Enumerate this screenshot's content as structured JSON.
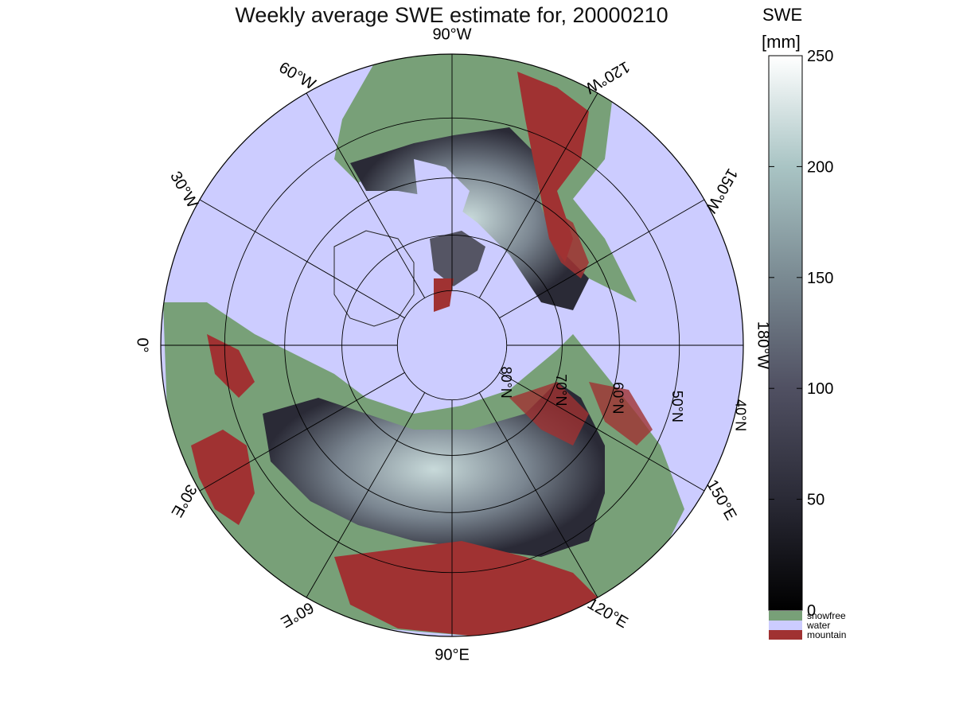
{
  "title": "Weekly average SWE estimate for, 20000210",
  "colorbar": {
    "title_line1": "SWE",
    "title_line2": "[mm]",
    "max_value": 250,
    "tick_values": [
      0,
      50,
      100,
      150,
      200,
      250
    ],
    "tick_labels": [
      "0",
      "50",
      "100",
      "150",
      "200",
      "250"
    ],
    "gradient": [
      "#000000",
      "#2a2a36",
      "#505062",
      "#7a8a92",
      "#a9c4c4",
      "#ffffff"
    ]
  },
  "legend": [
    {
      "label": "snowfree",
      "color": "#78a078"
    },
    {
      "label": "water",
      "color": "#ccccff"
    },
    {
      "label": "mountain",
      "color": "#a03232"
    }
  ],
  "map": {
    "projection": "north polar stereographic",
    "ocean_color": "#ccccff",
    "meridian_labels": [
      {
        "text": "90°W",
        "lon": 90
      },
      {
        "text": "120°W",
        "lon": 120
      },
      {
        "text": "150°W",
        "lon": 150
      },
      {
        "text": "180°W",
        "lon": 180
      },
      {
        "text": "150°E",
        "lon": 210
      },
      {
        "text": "120°E",
        "lon": 240
      },
      {
        "text": "90°E",
        "lon": 270
      },
      {
        "text": "60°E",
        "lon": 300
      },
      {
        "text": "30°E",
        "lon": 330
      },
      {
        "text": "0°",
        "lon": 0
      },
      {
        "text": "30°W",
        "lon": 30
      },
      {
        "text": "60°W",
        "lon": 60
      }
    ],
    "parallel_labels": [
      {
        "text": "80°N",
        "lat": 80
      },
      {
        "text": "70°N",
        "lat": 70
      },
      {
        "text": "60°N",
        "lat": 60
      },
      {
        "text": "50°N",
        "lat": 50
      },
      {
        "text": "40°N",
        "lat": 40
      }
    ]
  }
}
